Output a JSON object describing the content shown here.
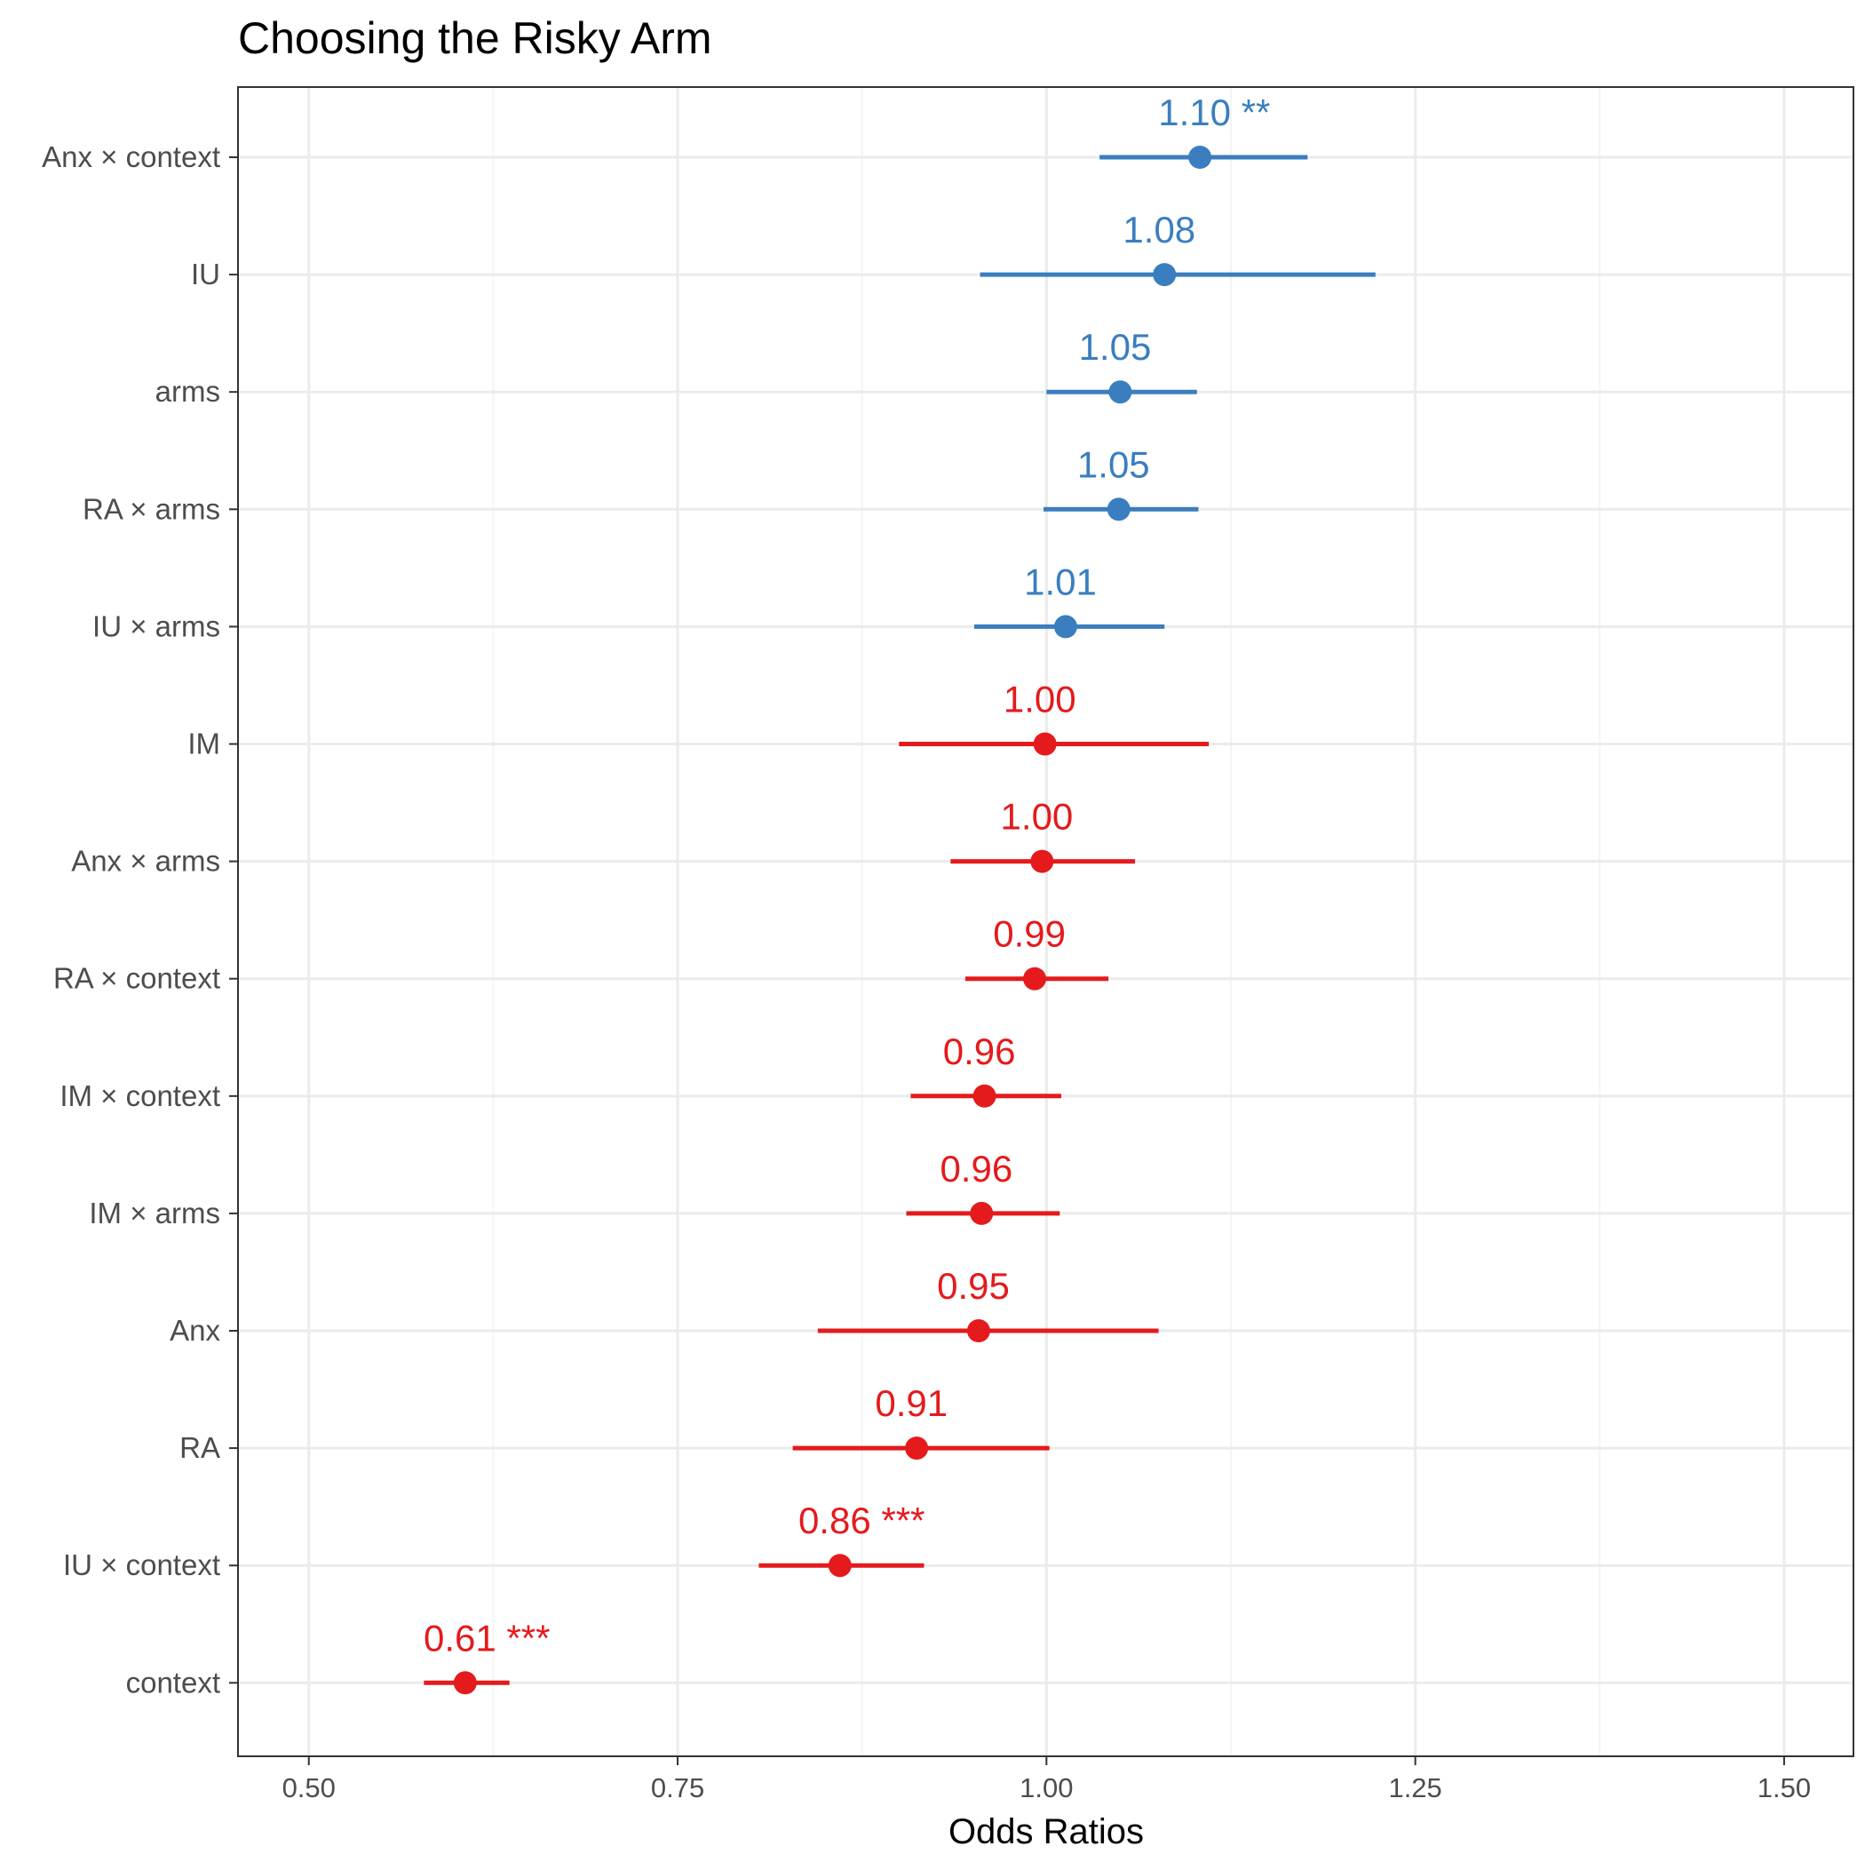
{
  "chart_data": {
    "type": "forest",
    "title": "Choosing the Risky Arm",
    "xlabel": "Odds Ratios",
    "ylabel": "",
    "xlim": [
      0.452,
      1.547
    ],
    "x_ticks": [
      "0.50",
      "0.75",
      "1.00",
      "1.25",
      "1.50"
    ],
    "x_tick_values": [
      0.5,
      0.75,
      1.0,
      1.25,
      1.5
    ],
    "x_minor_grid": [
      0.625,
      0.875,
      1.125,
      1.375
    ],
    "grid": true,
    "legend": "none",
    "colors": {
      "positive": "#3a7ebf",
      "negative": "#e41a1c",
      "panel_border": "#333333",
      "grid_major": "#ebebeb",
      "grid_minor": "#f4f4f4"
    },
    "terms": [
      {
        "term": "Anx × context",
        "estimate": 1.104,
        "ci_low": 1.036,
        "ci_high": 1.177,
        "label": "1.10 **",
        "color": "#3a7ebf"
      },
      {
        "term": "IU",
        "estimate": 1.08,
        "ci_low": 0.955,
        "ci_high": 1.223,
        "label": "1.08",
        "color": "#3a7ebf"
      },
      {
        "term": "arms",
        "estimate": 1.05,
        "ci_low": 1.0,
        "ci_high": 1.102,
        "label": "1.05",
        "color": "#3a7ebf"
      },
      {
        "term": "RA × arms",
        "estimate": 1.049,
        "ci_low": 0.998,
        "ci_high": 1.103,
        "label": "1.05",
        "color": "#3a7ebf"
      },
      {
        "term": "IU × arms",
        "estimate": 1.013,
        "ci_low": 0.951,
        "ci_high": 1.08,
        "label": "1.01",
        "color": "#3a7ebf"
      },
      {
        "term": "IM",
        "estimate": 0.999,
        "ci_low": 0.9,
        "ci_high": 1.11,
        "label": "1.00",
        "color": "#e41a1c"
      },
      {
        "term": "Anx × arms",
        "estimate": 0.997,
        "ci_low": 0.935,
        "ci_high": 1.06,
        "label": "1.00",
        "color": "#e41a1c"
      },
      {
        "term": "RA × context",
        "estimate": 0.992,
        "ci_low": 0.945,
        "ci_high": 1.042,
        "label": "0.99",
        "color": "#e41a1c"
      },
      {
        "term": "IM × context",
        "estimate": 0.958,
        "ci_low": 0.908,
        "ci_high": 1.01,
        "label": "0.96",
        "color": "#e41a1c"
      },
      {
        "term": "IM × arms",
        "estimate": 0.956,
        "ci_low": 0.905,
        "ci_high": 1.009,
        "label": "0.96",
        "color": "#e41a1c"
      },
      {
        "term": "Anx",
        "estimate": 0.954,
        "ci_low": 0.845,
        "ci_high": 1.076,
        "label": "0.95",
        "color": "#e41a1c"
      },
      {
        "term": "RA",
        "estimate": 0.912,
        "ci_low": 0.828,
        "ci_high": 1.002,
        "label": "0.91",
        "color": "#e41a1c"
      },
      {
        "term": "IU × context",
        "estimate": 0.86,
        "ci_low": 0.805,
        "ci_high": 0.917,
        "label": "0.86 ***",
        "color": "#e41a1c"
      },
      {
        "term": "context",
        "estimate": 0.606,
        "ci_low": 0.578,
        "ci_high": 0.636,
        "label": "0.61 ***",
        "color": "#e41a1c"
      }
    ]
  }
}
